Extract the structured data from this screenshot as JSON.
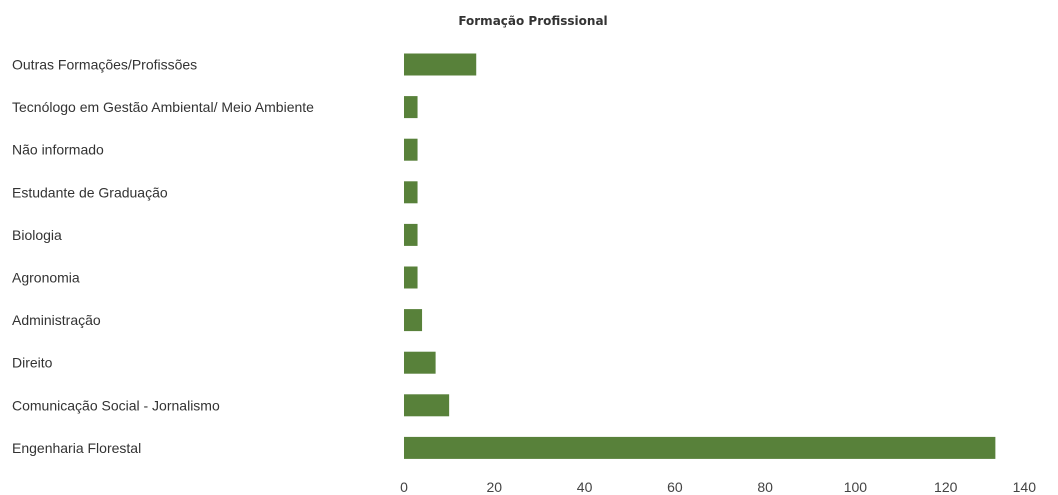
{
  "chart_data": {
    "type": "bar",
    "orientation": "horizontal",
    "title": "Formação Profissional",
    "xlabel": "",
    "ylabel": "",
    "categories": [
      "Outras Formações/Profissões",
      "Tecnólogo em Gestão Ambiental/ Meio Ambiente",
      "Não informado",
      "Estudante de Graduação",
      "Biologia",
      "Agronomia",
      "Administração",
      "Direito",
      "Comunicação Social - Jornalismo",
      "Engenharia Florestal"
    ],
    "values": [
      16,
      3,
      3,
      3,
      3,
      3,
      4,
      7,
      10,
      131
    ],
    "xlim": [
      0,
      140
    ],
    "xticks": [
      0,
      20,
      40,
      60,
      80,
      100,
      120,
      140
    ],
    "grid": false,
    "legend": "none",
    "bar_color": "#58813a"
  }
}
